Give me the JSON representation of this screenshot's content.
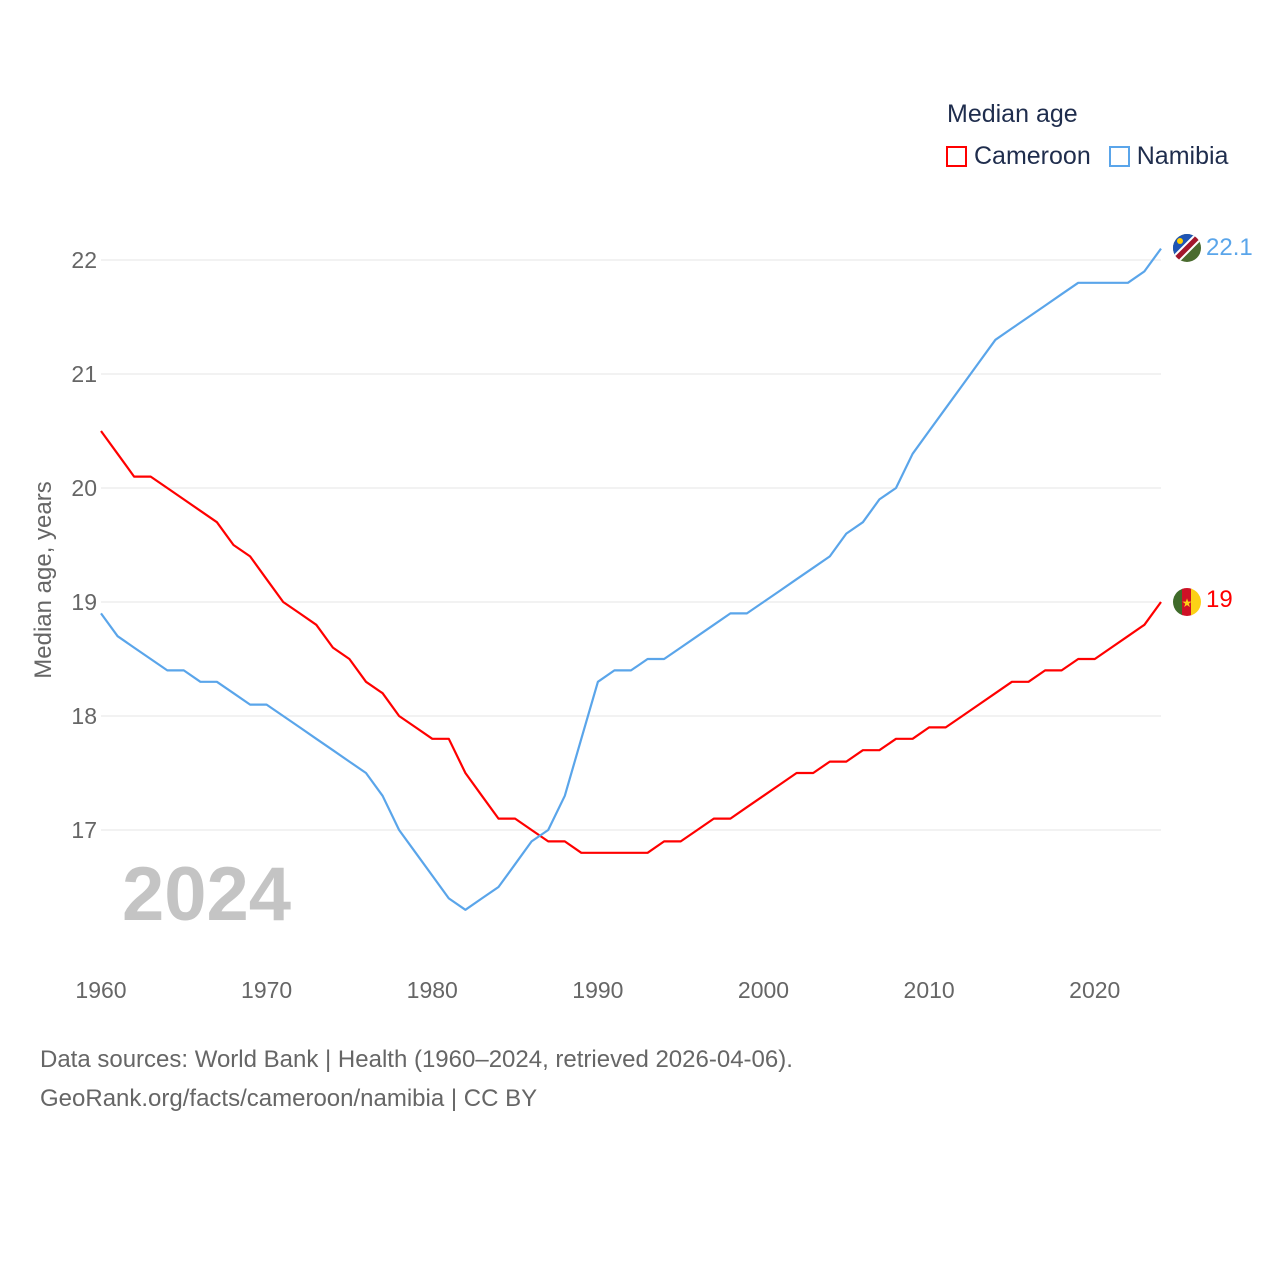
{
  "legend": {
    "title": "Median age",
    "items": [
      {
        "label": "Cameroon",
        "color": "#ff0000"
      },
      {
        "label": "Namibia",
        "color": "#5aa5ea"
      }
    ]
  },
  "watermark_year": "2024",
  "end_labels": {
    "cameroon": "19",
    "namibia": "22.1"
  },
  "source": {
    "line1": "Data sources: World Bank | Health (1960–2024, retrieved 2026-04-06).",
    "line2": "GeoRank.org/facts/cameroon/namibia | CC BY"
  },
  "chart_data": {
    "type": "line",
    "title": "Median age",
    "xlabel": "",
    "ylabel": "Median age, years",
    "xlim": [
      1960,
      2024
    ],
    "ylim": [
      16,
      22.3
    ],
    "xticks": [
      "1960",
      "1970",
      "1980",
      "1990",
      "2000",
      "2010",
      "2020"
    ],
    "yticks": [
      "17",
      "18",
      "19",
      "20",
      "21",
      "22"
    ],
    "grid": true,
    "legend_position": "top-right",
    "x_start": 1960,
    "series": [
      {
        "name": "Cameroon",
        "color": "#ff0000",
        "values": [
          20.5,
          20.3,
          20.1,
          20.1,
          20.0,
          19.9,
          19.8,
          19.7,
          19.5,
          19.4,
          19.2,
          19.0,
          18.9,
          18.8,
          18.6,
          18.5,
          18.3,
          18.2,
          18.0,
          17.9,
          17.8,
          17.8,
          17.5,
          17.3,
          17.1,
          17.1,
          17.0,
          16.9,
          16.9,
          16.8,
          16.8,
          16.8,
          16.8,
          16.8,
          16.9,
          16.9,
          17.0,
          17.1,
          17.1,
          17.2,
          17.3,
          17.4,
          17.5,
          17.5,
          17.6,
          17.6,
          17.7,
          17.7,
          17.8,
          17.8,
          17.9,
          17.9,
          18.0,
          18.1,
          18.2,
          18.3,
          18.3,
          18.4,
          18.4,
          18.5,
          18.5,
          18.6,
          18.7,
          18.8,
          19.0
        ]
      },
      {
        "name": "Namibia",
        "color": "#5aa5ea",
        "values": [
          18.9,
          18.7,
          18.6,
          18.5,
          18.4,
          18.4,
          18.3,
          18.3,
          18.2,
          18.1,
          18.1,
          18.0,
          17.9,
          17.8,
          17.7,
          17.6,
          17.5,
          17.3,
          17.0,
          16.8,
          16.6,
          16.4,
          16.3,
          16.4,
          16.5,
          16.7,
          16.9,
          17.0,
          17.3,
          17.8,
          18.3,
          18.4,
          18.4,
          18.5,
          18.5,
          18.6,
          18.7,
          18.8,
          18.9,
          18.9,
          19.0,
          19.1,
          19.2,
          19.3,
          19.4,
          19.6,
          19.7,
          19.9,
          20.0,
          20.3,
          20.5,
          20.7,
          20.9,
          21.1,
          21.3,
          21.4,
          21.5,
          21.6,
          21.7,
          21.8,
          21.8,
          21.8,
          21.8,
          21.9,
          22.1
        ]
      }
    ]
  }
}
